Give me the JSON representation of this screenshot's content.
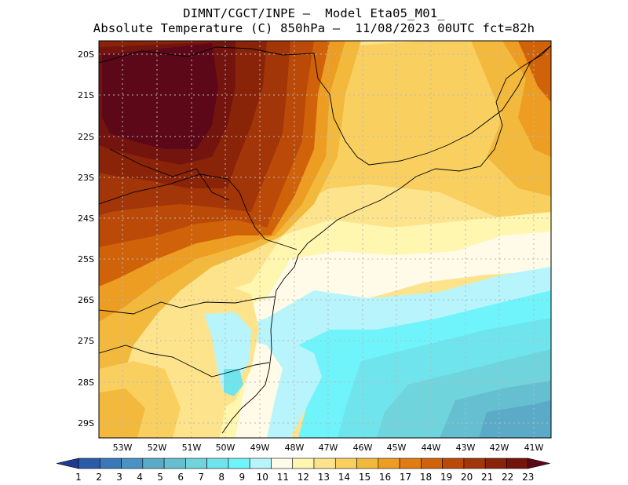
{
  "title": {
    "line1": "DIMNT/CGCT/INPE –  Model Eta05_M01_",
    "line2": "Absolute Temperature (C) 850hPa –  11/08/2023 00UTC fct=82h"
  },
  "map": {
    "lat_labels": [
      "20S",
      "21S",
      "22S",
      "23S",
      "24S",
      "25S",
      "26S",
      "27S",
      "28S",
      "29S"
    ],
    "lon_labels": [
      "53W",
      "52W",
      "51W",
      "50W",
      "49W",
      "48W",
      "47W",
      "46W",
      "45W",
      "44W",
      "43W",
      "42W",
      "41W"
    ]
  },
  "colorbar": {
    "labels": [
      "1",
      "2",
      "3",
      "4",
      "5",
      "6",
      "7",
      "8",
      "9",
      "10",
      "11",
      "12",
      "13",
      "14",
      "15",
      "16",
      "17",
      "18",
      "19",
      "20",
      "21",
      "22",
      "23"
    ],
    "colors": [
      "#1f3a93",
      "#2b5aa8",
      "#3a78b8",
      "#4a92c4",
      "#5aaac8",
      "#66bfd0",
      "#6fd4dc",
      "#6fe4ec",
      "#6ff4fc",
      "#b8f4fc",
      "#fffbe8",
      "#fff6b0",
      "#fde48c",
      "#f9d060",
      "#f3b93c",
      "#ec9d22",
      "#e17d10",
      "#d0620a",
      "#bb4a08",
      "#a23608",
      "#8a2408",
      "#74140e",
      "#5c0818"
    ]
  },
  "colors": {
    "frame": "#000000",
    "grid": "#b8b8b8",
    "coast": "#000000"
  }
}
